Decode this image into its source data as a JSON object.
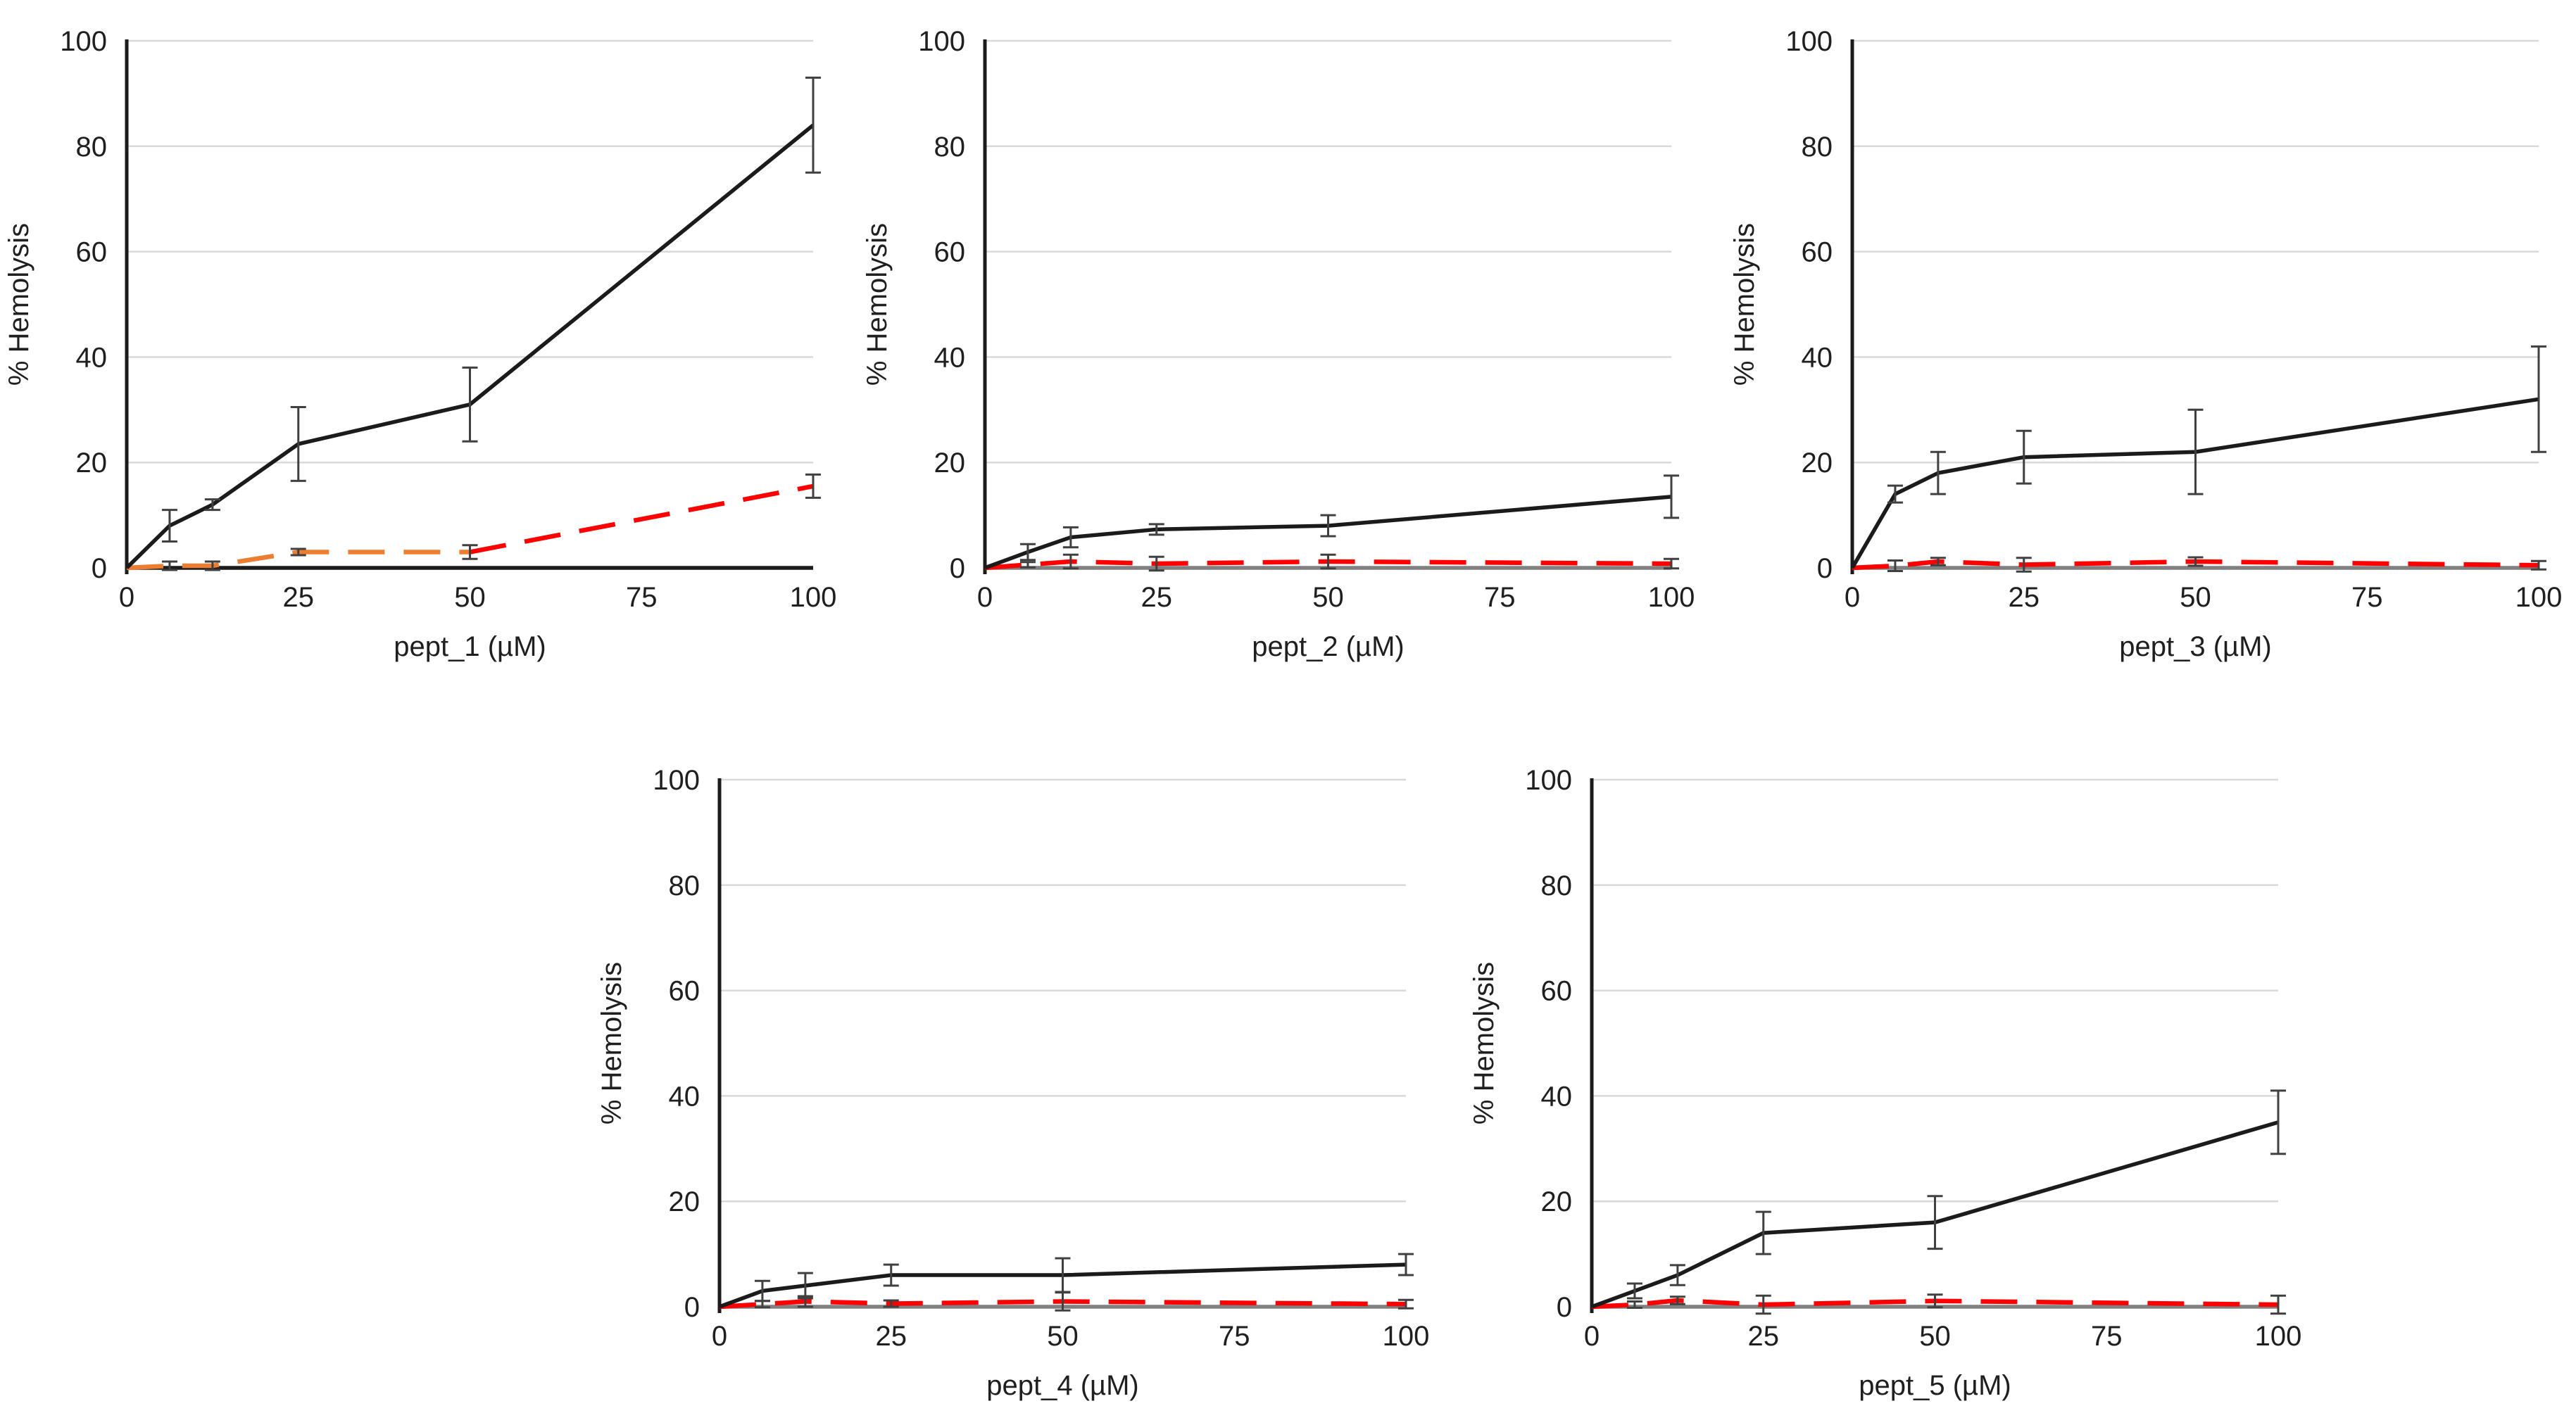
{
  "figure": {
    "description": "Five hemolysis dose-response line charts",
    "ylabel": "% Hemolysis",
    "background": "#ffffff",
    "grid_color": "#d9d9d9",
    "error_bar_color": "#404040",
    "text_color": "#1f1f1f"
  },
  "chart_data": [
    {
      "id": "pept_1",
      "type": "line",
      "xlabel": "pept_1 (µM)",
      "ylabel": "% Hemolysis",
      "xlim": [
        0,
        100
      ],
      "ylim": [
        0,
        100
      ],
      "xticks": [
        0,
        25,
        50,
        75,
        100
      ],
      "yticks": [
        0,
        20,
        40,
        60,
        80,
        100
      ],
      "grid": "horizontal",
      "legend": "none",
      "axis_color": "#1b1b1b",
      "series": [
        {
          "name": "black-solid",
          "color": "#1b1b1b",
          "style": "solid",
          "x": [
            0,
            6.25,
            12.5,
            25,
            50,
            100
          ],
          "values": [
            0,
            8,
            12,
            23.5,
            31,
            84
          ],
          "errors": [
            0,
            3,
            1,
            7,
            7,
            9
          ]
        },
        {
          "name": "orange-dashed",
          "color": "#ED7D31",
          "style": "dashed",
          "x": [
            0,
            6.25,
            12.5,
            25,
            50
          ],
          "values": [
            0,
            0.4,
            0.4,
            3,
            3
          ],
          "errors": [
            0,
            0.8,
            0.8,
            0.6,
            0
          ]
        },
        {
          "name": "red-dashed",
          "color": "#FE0000",
          "style": "dashed",
          "x": [
            50,
            100
          ],
          "values": [
            3,
            15.5
          ],
          "errors": [
            1.3,
            2.2
          ]
        }
      ]
    },
    {
      "id": "pept_2",
      "type": "line",
      "xlabel": "pept_2 (µM)",
      "ylabel": "% Hemolysis",
      "xlim": [
        0,
        100
      ],
      "ylim": [
        0,
        100
      ],
      "xticks": [
        0,
        25,
        50,
        75,
        100
      ],
      "yticks": [
        0,
        20,
        40,
        60,
        80,
        100
      ],
      "grid": "horizontal",
      "legend": "none",
      "axis_color": "#808080",
      "series": [
        {
          "name": "black-solid",
          "color": "#1b1b1b",
          "style": "solid",
          "x": [
            0,
            6.25,
            12.5,
            25,
            50,
            100
          ],
          "values": [
            0,
            3,
            5.8,
            7.3,
            8,
            13.5
          ],
          "errors": [
            0,
            1.5,
            1.9,
            1,
            2,
            4
          ]
        },
        {
          "name": "red-dashed",
          "color": "#FE0000",
          "style": "dashed",
          "x": [
            0,
            6.25,
            12.5,
            25,
            50,
            100
          ],
          "values": [
            0,
            0.6,
            1.2,
            0.8,
            1.2,
            0.8
          ],
          "errors": [
            0,
            0.5,
            1.3,
            1.3,
            1.3,
            0.9
          ]
        }
      ]
    },
    {
      "id": "pept_3",
      "type": "line",
      "xlabel": "pept_3 (µM)",
      "ylabel": "% Hemolysis",
      "xlim": [
        0,
        100
      ],
      "ylim": [
        0,
        100
      ],
      "xticks": [
        0,
        25,
        50,
        75,
        100
      ],
      "yticks": [
        0,
        20,
        40,
        60,
        80,
        100
      ],
      "grid": "horizontal",
      "legend": "none",
      "axis_color": "#808080",
      "series": [
        {
          "name": "black-solid",
          "color": "#1b1b1b",
          "style": "solid",
          "x": [
            0,
            6.25,
            12.5,
            25,
            50,
            100
          ],
          "values": [
            0,
            14,
            18,
            21,
            22,
            32
          ],
          "errors": [
            0,
            1.6,
            4,
            5,
            8,
            10
          ]
        },
        {
          "name": "red-dashed",
          "color": "#FE0000",
          "style": "dashed",
          "x": [
            0,
            6.25,
            12.5,
            25,
            50,
            100
          ],
          "values": [
            0,
            0.4,
            1.2,
            0.6,
            1.2,
            0.5
          ],
          "errors": [
            0,
            1,
            0.7,
            1.3,
            0.8,
            0.8
          ]
        }
      ]
    },
    {
      "id": "pept_4",
      "type": "line",
      "xlabel": "pept_4 (µM)",
      "ylabel": "% Hemolysis",
      "xlim": [
        0,
        100
      ],
      "ylim": [
        0,
        100
      ],
      "xticks": [
        0,
        25,
        50,
        75,
        100
      ],
      "yticks": [
        0,
        20,
        40,
        60,
        80,
        100
      ],
      "grid": "horizontal",
      "legend": "none",
      "axis_color": "#808080",
      "series": [
        {
          "name": "black-solid",
          "color": "#1b1b1b",
          "style": "solid",
          "x": [
            0,
            6.25,
            12.5,
            25,
            50,
            100
          ],
          "values": [
            0,
            3,
            4,
            6,
            6,
            8
          ],
          "errors": [
            0,
            1.9,
            2.4,
            2,
            3.2,
            2
          ]
        },
        {
          "name": "red-dashed",
          "color": "#FE0000",
          "style": "dashed",
          "x": [
            0,
            6.25,
            12.5,
            25,
            50,
            100
          ],
          "values": [
            0,
            0.5,
            1,
            0.6,
            1,
            0.5
          ],
          "errors": [
            0,
            0.6,
            1,
            0.6,
            1.7,
            0.8
          ]
        }
      ]
    },
    {
      "id": "pept_5",
      "type": "line",
      "xlabel": "pept_5 (µM)",
      "ylabel": "% Hemolysis",
      "xlim": [
        0,
        100
      ],
      "ylim": [
        0,
        100
      ],
      "xticks": [
        0,
        25,
        50,
        75,
        100
      ],
      "yticks": [
        0,
        20,
        40,
        60,
        80,
        100
      ],
      "grid": "horizontal",
      "legend": "none",
      "axis_color": "#808080",
      "series": [
        {
          "name": "black-solid",
          "color": "#1b1b1b",
          "style": "solid",
          "x": [
            0,
            6.25,
            12.5,
            25,
            50,
            100
          ],
          "values": [
            0,
            3,
            6,
            14,
            16,
            35
          ],
          "errors": [
            0,
            1.4,
            1.9,
            4,
            5,
            6
          ]
        },
        {
          "name": "red-dashed",
          "color": "#FE0000",
          "style": "dashed",
          "x": [
            0,
            6.25,
            12.5,
            25,
            50,
            100
          ],
          "values": [
            0,
            0.4,
            1.2,
            0.4,
            1.1,
            0.4
          ],
          "errors": [
            0,
            0.6,
            0.7,
            1.7,
            1.2,
            1.7
          ]
        }
      ]
    }
  ]
}
